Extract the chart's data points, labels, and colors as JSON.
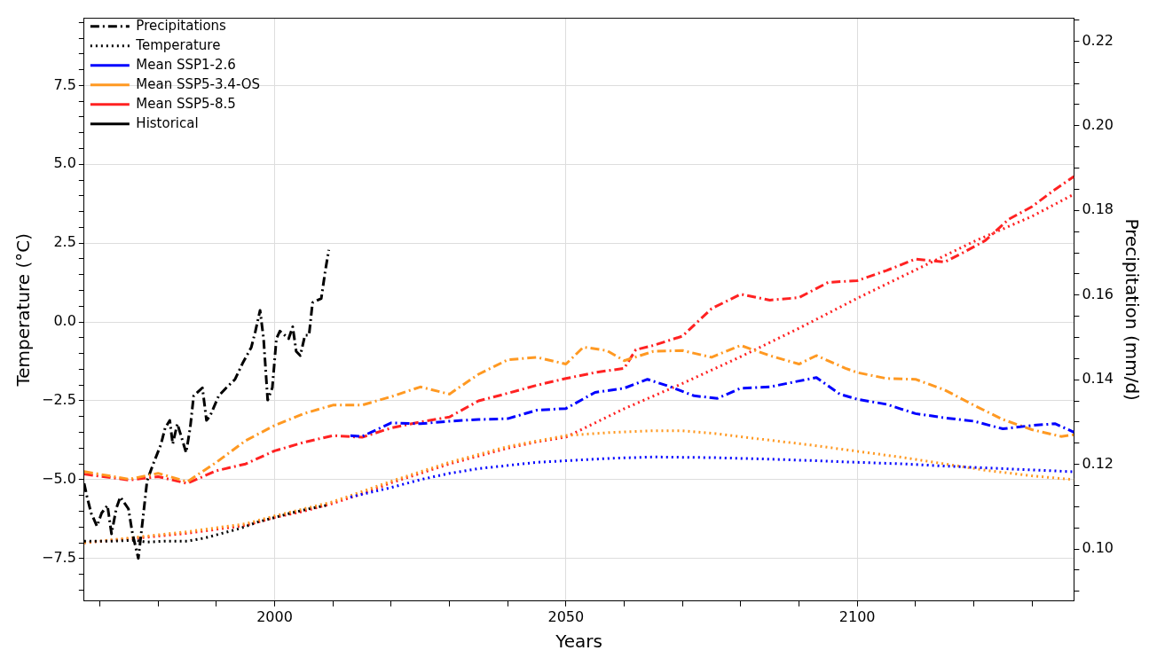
{
  "chart_data": {
    "type": "line",
    "xlabel": "Years",
    "ylabel": "Temperature (°C)",
    "y2label": "Precipitation (mm/d)",
    "xlim": [
      1967.3,
      2137.2
    ],
    "ylim": [
      -8.85,
      9.63
    ],
    "y2lim": [
      0.0877,
      0.2254
    ],
    "xticks": [
      {
        "value": 1970,
        "label": null
      },
      {
        "value": 1980,
        "label": null
      },
      {
        "value": 1990,
        "label": null
      },
      2000,
      {
        "value": 2010,
        "label": null
      },
      {
        "value": 2020,
        "label": null
      },
      {
        "value": 2030,
        "label": null
      },
      {
        "value": 2040,
        "label": null
      },
      2050,
      {
        "value": 2060,
        "label": null
      },
      {
        "value": 2070,
        "label": null
      },
      {
        "value": 2080,
        "label": null
      },
      {
        "value": 2090,
        "label": null
      },
      2100,
      {
        "value": 2110,
        "label": null
      },
      {
        "value": 2120,
        "label": null
      },
      {
        "value": 2130,
        "label": null
      }
    ],
    "yticks": [
      {
        "value": -8.5,
        "label": null
      },
      {
        "value": -8,
        "label": null
      },
      {
        "value": -7.5,
        "label": "−7.5"
      },
      {
        "value": -7,
        "label": null
      },
      {
        "value": -6.5,
        "label": null
      },
      {
        "value": -6,
        "label": null
      },
      {
        "value": -5.5,
        "label": null
      },
      {
        "value": -5,
        "label": "−5.0"
      },
      {
        "value": -4.5,
        "label": null
      },
      {
        "value": -4,
        "label": null
      },
      {
        "value": -3.5,
        "label": null
      },
      {
        "value": -3,
        "label": null
      },
      {
        "value": -2.5,
        "label": "−2.5"
      },
      {
        "value": -2,
        "label": null
      },
      {
        "value": -1.5,
        "label": null
      },
      {
        "value": -1,
        "label": null
      },
      {
        "value": -0.5,
        "label": null
      },
      {
        "value": 0,
        "label": "0.0"
      },
      {
        "value": 0.5,
        "label": null
      },
      {
        "value": 1,
        "label": null
      },
      {
        "value": 1.5,
        "label": null
      },
      {
        "value": 2,
        "label": null
      },
      2.5,
      {
        "value": 3,
        "label": null
      },
      {
        "value": 3.5,
        "label": null
      },
      {
        "value": 4,
        "label": null
      },
      {
        "value": 4.5,
        "label": null
      },
      {
        "value": 5,
        "label": "5.0"
      },
      {
        "value": 5.5,
        "label": null
      },
      {
        "value": 6,
        "label": null
      },
      {
        "value": 6.5,
        "label": null
      },
      {
        "value": 7,
        "label": null
      },
      7.5,
      {
        "value": 8,
        "label": null
      },
      {
        "value": 8.5,
        "label": null
      },
      {
        "value": 9,
        "label": null
      },
      {
        "value": 9.5,
        "label": null
      }
    ],
    "y2ticks": [
      {
        "value": 0.09,
        "label": null
      },
      {
        "value": 0.095,
        "label": null
      },
      {
        "value": 0.1,
        "label": "0.10"
      },
      {
        "value": 0.105,
        "label": null
      },
      {
        "value": 0.11,
        "label": null
      },
      {
        "value": 0.115,
        "label": null
      },
      0.12,
      {
        "value": 0.125,
        "label": null
      },
      {
        "value": 0.13,
        "label": null
      },
      {
        "value": 0.135,
        "label": null
      },
      0.14,
      {
        "value": 0.145,
        "label": null
      },
      {
        "value": 0.15,
        "label": null
      },
      {
        "value": 0.155,
        "label": null
      },
      0.16,
      {
        "value": 0.165,
        "label": null
      },
      {
        "value": 0.17,
        "label": null
      },
      {
        "value": 0.175,
        "label": null
      },
      0.18,
      {
        "value": 0.185,
        "label": null
      },
      {
        "value": 0.19,
        "label": null
      },
      {
        "value": 0.195,
        "label": null
      },
      {
        "value": 0.2,
        "label": "0.20"
      },
      {
        "value": 0.205,
        "label": null
      },
      {
        "value": 0.21,
        "label": null
      },
      {
        "value": 0.215,
        "label": null
      },
      0.22,
      {
        "value": 0.225,
        "label": null
      }
    ],
    "grid": true,
    "legend": "top left",
    "series": [
      {
        "name": "Precipitations",
        "color": "#000000",
        "line_style": "dashdot"
      },
      {
        "name": "Temperature",
        "color": "#000000",
        "line_style": "dotted"
      },
      {
        "name": "Mean SSP1-2.6",
        "color": "#0000ff",
        "line_style": "dashdot",
        "axis": "y2",
        "x": [
          2013,
          2015,
          2020,
          2025,
          2030,
          2035,
          2040,
          2045,
          2050,
          2055,
          2060,
          2064,
          2068,
          2072,
          2076,
          2080,
          2085,
          2090,
          2093,
          2097,
          2100,
          2105,
          2110,
          2115,
          2120,
          2125,
          2130,
          2134,
          2137.2
        ],
        "values": [
          0.1268,
          0.1266,
          0.1298,
          0.1296,
          0.1302,
          0.1306,
          0.1308,
          0.1328,
          0.1332,
          0.137,
          0.138,
          0.1401,
          0.1383,
          0.1362,
          0.1356,
          0.138,
          0.1383,
          0.1397,
          0.1405,
          0.1366,
          0.1354,
          0.1342,
          0.132,
          0.131,
          0.1302,
          0.1284,
          0.1292,
          0.1296,
          0.1276
        ]
      },
      {
        "name": "Mean SSP5-3.4-OS",
        "color": "#ff9922",
        "line_style": "dashdot",
        "axis": "y2",
        "x": [
          1967.3,
          1975,
          1980,
          1985,
          1990,
          1995,
          2000,
          2005,
          2010,
          2015,
          2020,
          2025,
          2030,
          2035,
          2040,
          2045,
          2050,
          2053,
          2057,
          2060,
          2065,
          2070,
          2075,
          2080,
          2085,
          2090,
          2093,
          2098,
          2100,
          2105,
          2110,
          2115,
          2120,
          2125,
          2130,
          2135,
          2137.2
        ],
        "values": [
          0.1183,
          0.1165,
          0.1179,
          0.1159,
          0.1205,
          0.1256,
          0.1292,
          0.132,
          0.134,
          0.134,
          0.136,
          0.1383,
          0.1366,
          0.1413,
          0.1447,
          0.1453,
          0.1437,
          0.1477,
          0.1469,
          0.1445,
          0.1467,
          0.1469,
          0.1453,
          0.1481,
          0.1457,
          0.1437,
          0.1457,
          0.1427,
          0.1417,
          0.1403,
          0.1401,
          0.1376,
          0.134,
          0.1306,
          0.1282,
          0.1266,
          0.127
        ]
      },
      {
        "name": "Mean SSP5-8.5",
        "color": "#ff2222",
        "line_style": "dashdot",
        "axis": "y2",
        "x": [
          1967.3,
          1975,
          1980,
          1985,
          1990,
          1995,
          2000,
          2005,
          2010,
          2015,
          2020,
          2025,
          2030,
          2035,
          2040,
          2045,
          2050,
          2055,
          2060,
          2062,
          2065,
          2070,
          2075,
          2080,
          2085,
          2090,
          2095,
          2100,
          2105,
          2110,
          2115,
          2118,
          2122,
          2126,
          2130,
          2134,
          2137.2
        ],
        "values": [
          0.1177,
          0.1163,
          0.1171,
          0.1155,
          0.1185,
          0.1201,
          0.1232,
          0.1252,
          0.1268,
          0.1264,
          0.1286,
          0.13,
          0.1312,
          0.135,
          0.1368,
          0.1387,
          0.1403,
          0.1417,
          0.1427,
          0.1471,
          0.1481,
          0.1503,
          0.1568,
          0.1602,
          0.1588,
          0.1594,
          0.163,
          0.1634,
          0.1658,
          0.1685,
          0.1678,
          0.1699,
          0.1729,
          0.1779,
          0.1809,
          0.185,
          0.188
        ]
      },
      {
        "name": "Historical",
        "color": "#000000",
        "line_style": "dashdot",
        "axis": "y2",
        "x": [
          1967.3,
          1967.8,
          1968.5,
          1969.5,
          1970.3,
          1971.3,
          1972,
          1972.8,
          1973.5,
          1974.9,
          1975.6,
          1976.6,
          1977.4,
          1978.1,
          1979.1,
          1980.5,
          1981.2,
          1982,
          1982.5,
          1983.3,
          1984.8,
          1985.5,
          1986.1,
          1987.6,
          1988.3,
          1988.9,
          1990.4,
          1991.7,
          1993.2,
          1994.5,
          1996,
          1996.7,
          1997.5,
          1998.1,
          1998.8,
          1999.6,
          2000.3,
          2000.9,
          2002.4,
          2003.1,
          2003.7,
          2004.4,
          2005.2,
          2005.9,
          2006.5,
          2008,
          2008.7,
          2009.3
        ],
        "values": [
          0.1155,
          0.1123,
          0.1085,
          0.1054,
          0.1085,
          0.1103,
          0.1036,
          0.1095,
          0.1123,
          0.1095,
          0.1036,
          0.0978,
          0.1074,
          0.1161,
          0.1199,
          0.1248,
          0.1286,
          0.1304,
          0.1248,
          0.1296,
          0.1228,
          0.1286,
          0.1362,
          0.1381,
          0.1304,
          0.1314,
          0.1362,
          0.1381,
          0.1401,
          0.1439,
          0.1477,
          0.1515,
          0.1564,
          0.1497,
          0.1352,
          0.1381,
          0.1497,
          0.1515,
          0.1497,
          0.1525,
          0.1467,
          0.1457,
          0.1505,
          0.1505,
          0.1582,
          0.1592,
          0.1658,
          0.1707
        ]
      },
      {
        "color": "#000000",
        "line_style": "dotted",
        "x": [
          1967.3,
          1972,
          1976,
          1978,
          1981,
          1985,
          1988,
          1991,
          1994,
          1997,
          2000,
          2003,
          2006,
          2009.3
        ],
        "values": [
          -6.95,
          -6.95,
          -6.92,
          -6.98,
          -6.95,
          -6.95,
          -6.85,
          -6.7,
          -6.55,
          -6.35,
          -6.2,
          -6.05,
          -5.92,
          -5.8
        ]
      },
      {
        "color": "#0000ff",
        "line_style": "dotted",
        "x": [
          2013,
          2020,
          2025,
          2030,
          2035,
          2040,
          2045,
          2050,
          2058,
          2065,
          2075,
          2085,
          2093,
          2100,
          2108,
          2115,
          2125,
          2137.2
        ],
        "values": [
          -5.55,
          -5.25,
          -5.0,
          -4.8,
          -4.65,
          -4.55,
          -4.45,
          -4.4,
          -4.32,
          -4.28,
          -4.3,
          -4.35,
          -4.4,
          -4.45,
          -4.5,
          -4.57,
          -4.65,
          -4.75
        ]
      },
      {
        "color": "#ff9922",
        "line_style": "dotted",
        "x": [
          1967.3,
          1975,
          1985,
          1995,
          2000,
          2010,
          2020,
          2030,
          2040,
          2050,
          2058,
          2065,
          2070,
          2075.7,
          2085,
          2092,
          2100,
          2108,
          2115,
          2122,
          2130,
          2137.2
        ],
        "values": [
          -7.0,
          -6.85,
          -6.65,
          -6.4,
          -6.15,
          -5.7,
          -5.05,
          -4.45,
          -3.95,
          -3.6,
          -3.5,
          -3.45,
          -3.45,
          -3.54,
          -3.75,
          -3.9,
          -4.1,
          -4.3,
          -4.5,
          -4.7,
          -4.88,
          -5.0
        ]
      },
      {
        "color": "#ff2222",
        "line_style": "dotted",
        "x": [
          1967.3,
          1975,
          1985,
          1995,
          2000,
          2005,
          2010,
          2015,
          2020,
          2025,
          2030,
          2035,
          2040,
          2045,
          2050,
          2060,
          2070,
          2080,
          2090,
          2100,
          2110,
          2120,
          2130,
          2137.2
        ],
        "values": [
          -7.0,
          -6.88,
          -6.7,
          -6.45,
          -6.2,
          -6.0,
          -5.75,
          -5.45,
          -5.1,
          -4.8,
          -4.5,
          -4.25,
          -4.0,
          -3.8,
          -3.65,
          -2.75,
          -1.95,
          -1.1,
          -0.2,
          0.75,
          1.65,
          2.55,
          3.35,
          4.05
        ]
      }
    ]
  }
}
